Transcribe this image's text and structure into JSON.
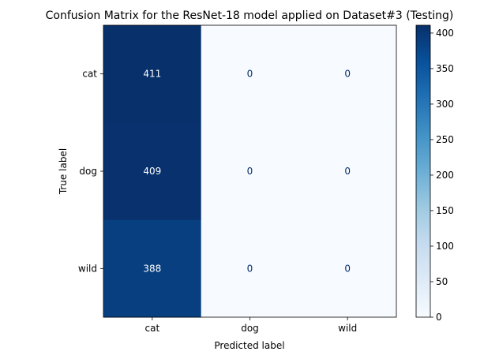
{
  "chart_data": {
    "type": "heatmap",
    "title": "Confusion Matrix for the ResNet-18 model applied on Dataset#3 (Testing)",
    "xlabel": "Predicted label",
    "ylabel": "True label",
    "x_categories": [
      "cat",
      "dog",
      "wild"
    ],
    "y_categories": [
      "cat",
      "dog",
      "wild"
    ],
    "matrix": [
      [
        411,
        0,
        0
      ],
      [
        409,
        0,
        0
      ],
      [
        388,
        0,
        0
      ]
    ],
    "colormap": "Blues",
    "colorbar": {
      "min": 0,
      "max": 411,
      "ticks": [
        0,
        50,
        100,
        150,
        200,
        250,
        300,
        350,
        400
      ]
    },
    "colors": {
      "low": "#f7fbff",
      "high": "#08306b",
      "text_on_dark": "#ffffff",
      "text_on_light": "#08306b"
    }
  }
}
